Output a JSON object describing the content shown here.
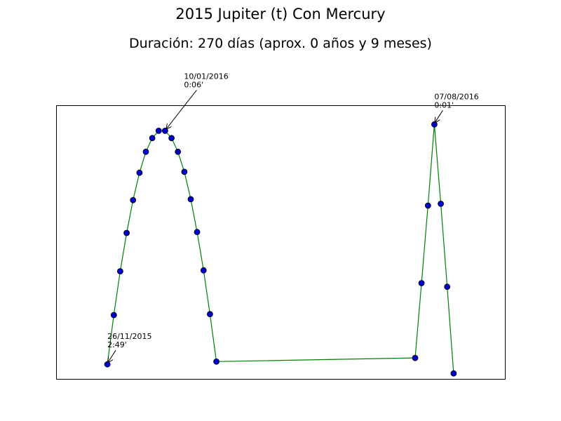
{
  "chart_data": {
    "type": "line",
    "title": "2015 Jupiter (t) Con Mercury",
    "subtitle": "Duración: 270 días (aprox. 0 años y 9 meses)",
    "xlabel": "",
    "ylabel": "",
    "grid": false,
    "axes_ticks_shown": false,
    "xlim": [
      -8,
      62
    ],
    "ylim": [
      0.0,
      3.0
    ],
    "line_color": "#008000",
    "marker_color": "#0000cc",
    "series": [
      {
        "x": [
          0,
          1,
          2,
          3,
          4,
          5,
          6,
          7,
          8,
          9,
          10,
          11,
          12,
          13,
          14,
          15,
          16,
          17,
          48,
          49,
          50,
          51,
          52,
          53,
          54
        ],
        "y": [
          0.16,
          0.7,
          1.18,
          1.6,
          1.96,
          2.26,
          2.49,
          2.64,
          2.72,
          2.72,
          2.64,
          2.49,
          2.27,
          1.97,
          1.61,
          1.19,
          0.71,
          0.19,
          0.23,
          1.05,
          1.9,
          2.79,
          1.92,
          1.01,
          0.06
        ]
      }
    ],
    "annotations": [
      {
        "point_index": 0,
        "lines": [
          "26/11/2015",
          "2:49'"
        ]
      },
      {
        "point_index": 9,
        "lines": [
          "10/01/2016",
          "0:06'"
        ]
      },
      {
        "point_index": 21,
        "lines": [
          "07/08/2016",
          "0:01'"
        ]
      }
    ]
  }
}
